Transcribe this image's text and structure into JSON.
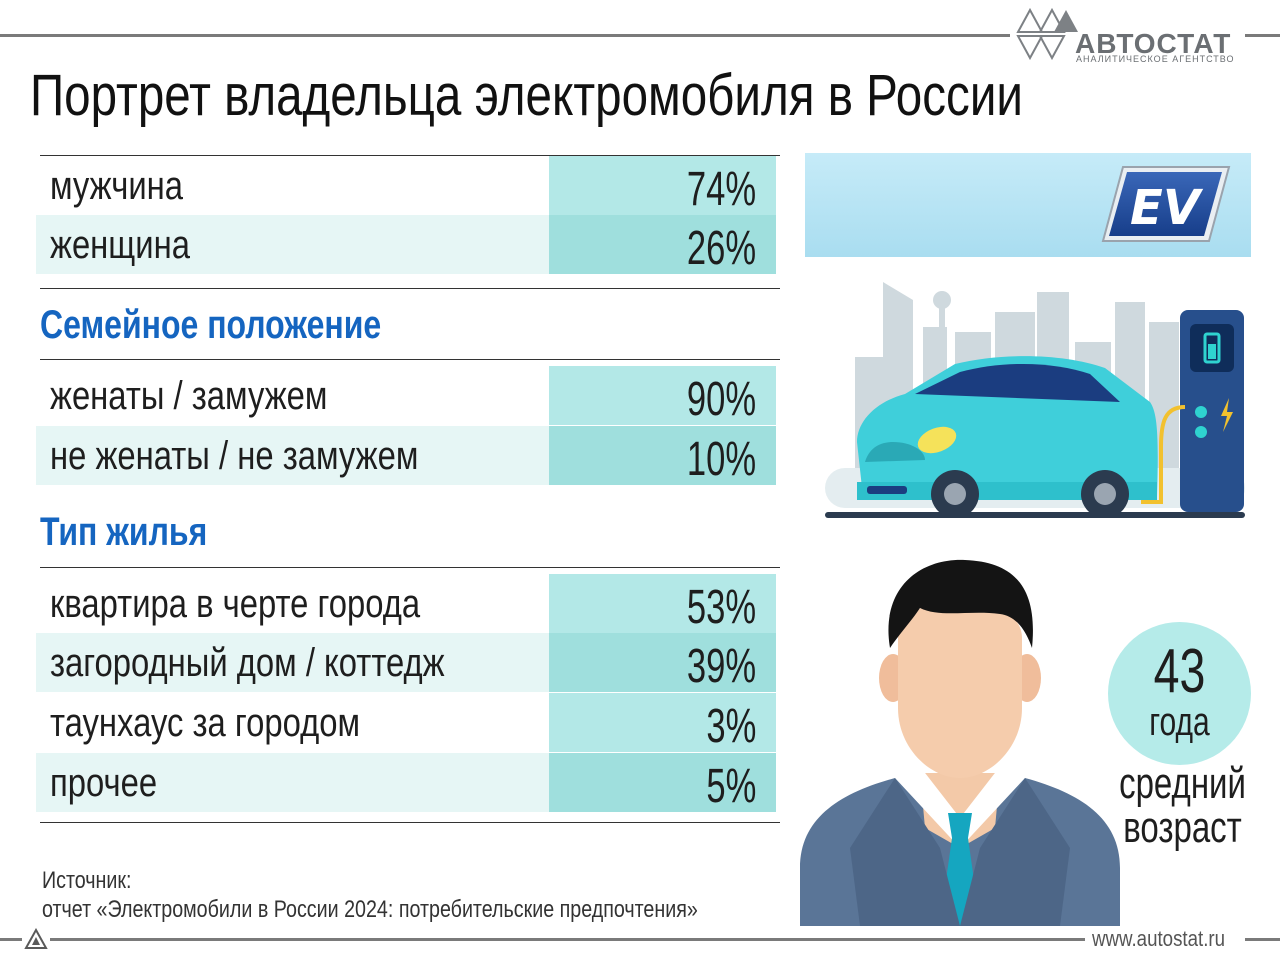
{
  "header": {
    "title": "Портрет владельца электромобиля в России",
    "logo_name": "АВТОСТАТ",
    "logo_subtitle": "АНАЛИТИЧЕСКОЕ АГЕНТСТВО"
  },
  "gender": {
    "rows": [
      {
        "label": "мужчина",
        "value": "74%"
      },
      {
        "label": "женщина",
        "value": "26%"
      }
    ]
  },
  "family": {
    "heading": "Семейное положение",
    "rows": [
      {
        "label": "женаты / замужем",
        "value": "90%"
      },
      {
        "label": "не женаты / не замужем",
        "value": "10%"
      }
    ]
  },
  "housing": {
    "heading": "Тип жилья",
    "rows": [
      {
        "label": "квартира в черте города",
        "value": "53%"
      },
      {
        "label": "загородный дом / коттедж",
        "value": "39%"
      },
      {
        "label": "таунхаус за городом",
        "value": "3%"
      },
      {
        "label": "прочее",
        "value": "5%"
      }
    ]
  },
  "source": {
    "line1": "Источник:",
    "line2": "отчет «Электромобили в России 2024: потребительские  предпочтения»"
  },
  "age": {
    "number": "43",
    "unit": "года",
    "caption_line1": "средний",
    "caption_line2": "возраст"
  },
  "banner": {
    "badge": "EV"
  },
  "footer": {
    "site": "www.autostat.ru"
  },
  "icons": [
    "autostat-logo-icon",
    "ev-badge-icon",
    "charging-car-icon",
    "man-avatar-icon",
    "footer-triangle-icon"
  ],
  "colors": {
    "accent_blue": "#1565c0",
    "value_teal": "#b3e8e7",
    "row_shade": "#e6f6f5",
    "age_circle": "#b5ebe9"
  }
}
